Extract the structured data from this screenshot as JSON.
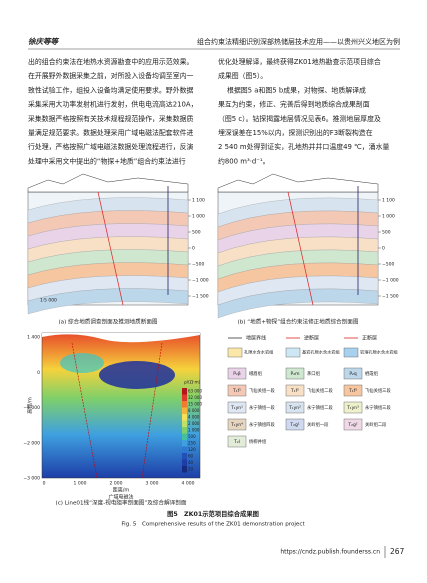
{
  "header": {
    "authors": "徐庆等等",
    "running_title": "组合约束法精细识别深部热储层技术应用——以贵州兴义地区为例"
  },
  "body": {
    "left": [
      "出的组合约束法在地热水资源勘查中的应用示范效果。",
      "在开展野外数据采集之前，对所投入设备均调至室内一",
      "致性试验工作，组投入设备均满足使用要求。野外数据",
      "采集采用大功率发射机进行发射，供电电流高达210A，",
      "采集数据严格按照有关技术规程规范操作，采集数据质",
      "量满足规范要求。数据处理采用广域电磁法配套软件进",
      "行处理，严格按照广域电磁法数据处理流程进行，反演",
      "处理中采用文中提出的“物探+地质”组合约束法进行"
    ],
    "right": [
      "优化处理解译，最终获得ZK01地热勘查示范项目综合",
      "成果图（图5）。",
      "根据图5 a和图5 b成果，对物探、地质解译成",
      "果互为约束，修正、完善后得到地质综合成果剖面",
      "（图5 c）。钻探揭露地层情况见表6。推测地层厚度及",
      "埋深误差在15%以内，探测识别出的F3断裂构造在",
      "2 540 m处得到证实，孔地热井井口温度49 ℃，涌水量",
      "约800 m³·d⁻¹。"
    ]
  },
  "figure": {
    "panel_a": {
      "caption": "(a) 综合地质调查剖面及推测地质断面图",
      "elevation_ticks": [
        "1 100",
        "1 000",
        "500",
        "0",
        "−500",
        "−1 000",
        "−1 500"
      ],
      "scale": "1∶5 000"
    },
    "panel_b": {
      "caption": "(b) “地质+物探”组合约束法修正地质综合剖面图",
      "elevation_ticks": [
        "1 100",
        "1 000",
        "500",
        "0",
        "−500",
        "−1 000",
        "−1 500"
      ]
    },
    "panel_c": {
      "caption": "(c) Line01线“深度-视电阻率剖面图”及综合解译剖面",
      "y_label": "高程/m",
      "x_label": "距离/m",
      "x_sublabel": "广域电磁法",
      "yticks": [
        "1 400",
        "0",
        "−1 000",
        "−2 000",
        "−3 000"
      ],
      "xticks": [
        "0",
        "1 000",
        "2 000",
        "3 000",
        "4 000"
      ],
      "colorbar_title": "ρ/(Ω·m)",
      "colorbar_ticks": [
        "63 000",
        "32 000",
        "15 000",
        "8 000",
        "4 000",
        "2 000",
        "1 000",
        "500",
        "250",
        "120",
        "60",
        "40",
        "20"
      ]
    },
    "legend": {
      "lines": [
        "地层界线",
        "逆断层",
        "正断层"
      ],
      "aquifers": [
        "孔隙水含水岩组",
        "基岩孔隙水含水岩组",
        "岩溶孔隙水含水岩组"
      ],
      "units": [
        {
          "code": "P₂β",
          "label": "峨眉组"
        },
        {
          "code": "P₂m",
          "label": "茅口组"
        },
        {
          "code": "P₂q",
          "label": "栖霞组"
        },
        {
          "code": "T₁f¹",
          "label": "飞仙关组一段"
        },
        {
          "code": "T₁f²",
          "label": "飞仙关组二段"
        },
        {
          "code": "T₁f³",
          "label": "飞仙关组三段"
        },
        {
          "code": "T₁yn¹",
          "label": "永宁镇组一段"
        },
        {
          "code": "T₁yn²",
          "label": "永宁镇组二段"
        },
        {
          "code": "T₁yn³",
          "label": "永宁镇组三段"
        },
        {
          "code": "T₁yn⁴",
          "label": "永宁镇组四段"
        },
        {
          "code": "T₂g¹",
          "label": "关岭组一段"
        },
        {
          "code": "T₂g²",
          "label": "关岭组二段"
        },
        {
          "code": "T₂l",
          "label": "杨柳井组"
        }
      ]
    },
    "caption_cn": "图5　ZK01示范项目综合成果图",
    "caption_en": "Fig. 5　Comprehensive results of the ZK01 demonstration project"
  },
  "footer": {
    "url": "https://cndz.publish.founderss.cn",
    "page": "267"
  }
}
